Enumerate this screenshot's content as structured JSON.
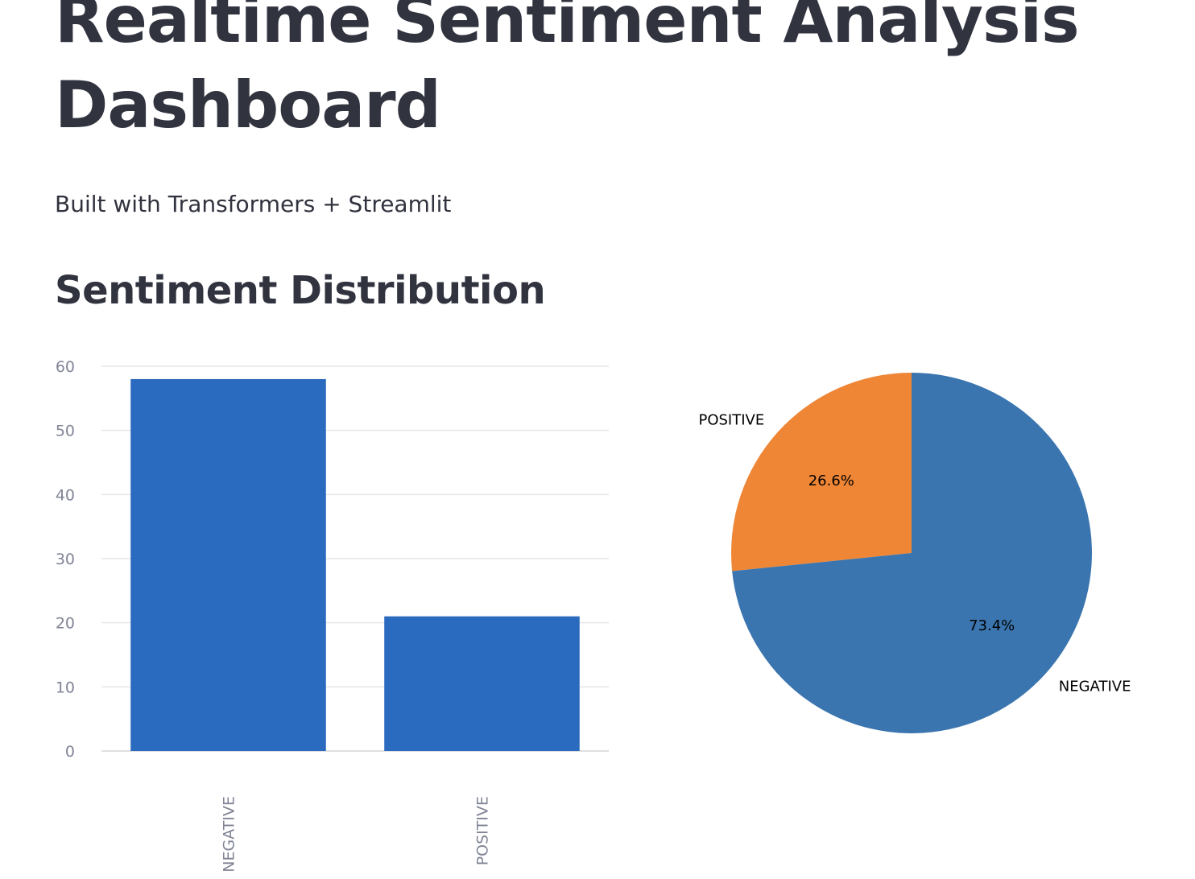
{
  "header": {
    "title": "Realtime Sentiment Analysis Dashboard",
    "subtitle": "Built with Transformers + Streamlit",
    "section_heading": "Sentiment Distribution"
  },
  "chart_data": [
    {
      "type": "bar",
      "categories": [
        "NEGATIVE",
        "POSITIVE"
      ],
      "values": [
        58,
        21
      ],
      "ylim": [
        0,
        60
      ],
      "yticks": [
        0,
        10,
        20,
        30,
        40,
        50,
        60
      ],
      "grid": true,
      "color": "#2a6abf",
      "xlabel": "",
      "ylabel": ""
    },
    {
      "type": "pie",
      "labels": [
        "POSITIVE",
        "NEGATIVE"
      ],
      "values": [
        26.6,
        73.4
      ],
      "value_labels": [
        "26.6%",
        "73.4%"
      ],
      "colors": [
        "#ef8636",
        "#3b75af"
      ]
    }
  ]
}
